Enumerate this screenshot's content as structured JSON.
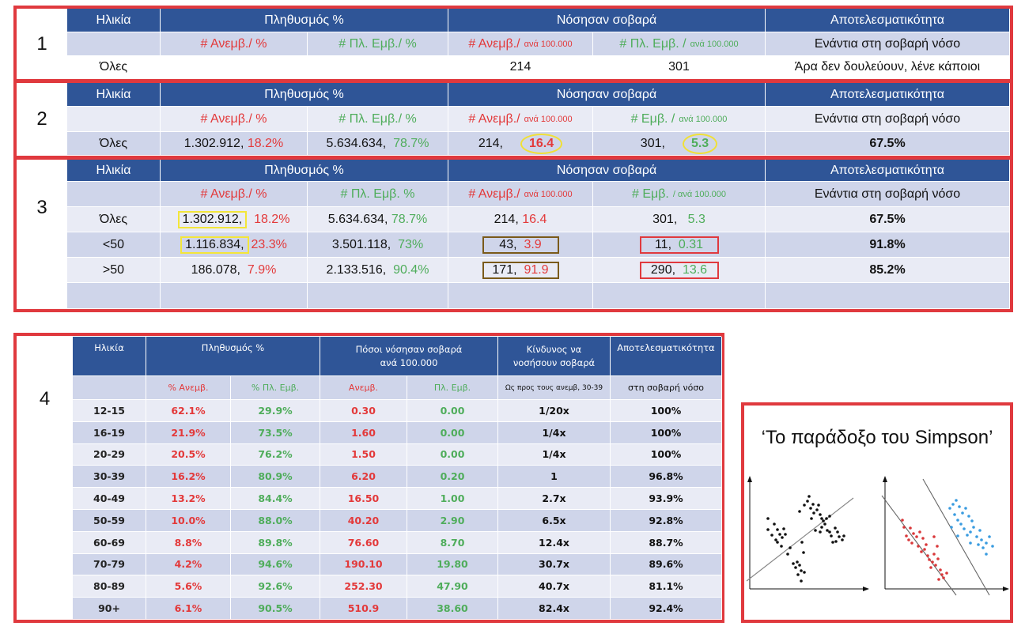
{
  "colors": {
    "panel_border": "#e0393e",
    "header_bg": "#2f5597",
    "subheader_bg": "#cfd5ea",
    "row_light": "#e9ebf5",
    "row_dark": "#cfd5ea",
    "unvaccinated": "#e3393a",
    "vaccinated": "#4fad5b",
    "highlight_yellow": "#f3e63a",
    "highlight_brown": "#7a5a1a"
  },
  "panel1": {
    "number": "1",
    "headers": [
      "Ηλικία",
      "Πληθυσμός %",
      "Νόσησαν σοβαρά",
      "Αποτελεσματικότητα"
    ],
    "sub": {
      "pop_unvax": "# Ανεμβ./ %",
      "pop_vax": "# Πλ. Εμβ./ %",
      "sick_unvax": "# Ανεμβ./",
      "sick_unvax_unit": "ανά 100.000",
      "sick_vax": "# Πλ. Εμβ. /",
      "sick_vax_unit": "ανά 100.000",
      "eff": "Ενάντια στη σοβαρή νόσο"
    },
    "row": {
      "age": "Όλες",
      "sick_unvax": "214",
      "sick_vax": "301",
      "eff": "Άρα δεν δουλεύουν, λένε κάποιοι"
    }
  },
  "panel2": {
    "number": "2",
    "headers": [
      "Ηλικία",
      "Πληθυσμός %",
      "Νόσησαν σοβαρά",
      "Αποτελεσματικότητα"
    ],
    "sub": {
      "pop_unvax": "# Ανεμβ./ %",
      "pop_vax": "# Πλ. Εμβ./ %",
      "sick_unvax": "# Ανεμβ./",
      "sick_unvax_unit": "ανά 100.000",
      "sick_vax": "# Εμβ. /",
      "sick_vax_unit": "ανά 100.000",
      "eff": "Ενάντια στη σοβαρή νόσο"
    },
    "row": {
      "age": "Όλες",
      "pop_unvax_n": "1.302.912,",
      "pop_unvax_pct": "18.2%",
      "pop_vax_n": "5.634.634,",
      "pop_vax_pct": "78.7%",
      "sick_unvax_n": "214,",
      "sick_unvax_rate": "16.4",
      "sick_vax_n": "301,",
      "sick_vax_rate": "5.3",
      "eff": "67.5%"
    }
  },
  "panel3": {
    "number": "3",
    "headers": [
      "Ηλικία",
      "Πληθυσμός %",
      "Νόσησαν σοβαρά",
      "Αποτελεσματικότητα"
    ],
    "sub": {
      "pop_unvax": "# Ανεμβ./ %",
      "pop_vax": "# Πλ. Εμβ. %",
      "sick_unvax": "# Ανεμβ./",
      "sick_unvax_unit": "ανά 100.000",
      "sick_vax": "# Εμβ.",
      "sick_vax_unit": "/ ανά 100.000",
      "eff": "Ενάντια στη σοβαρή νόσο"
    },
    "rows": [
      {
        "age": "Όλες",
        "pop_unvax_n": "1.302.912,",
        "pop_unvax_pct": "18.2%",
        "pop_vax_n": "5.634.634,",
        "pop_vax_pct": "78.7%",
        "sick_unvax_n": "214,",
        "sick_unvax_rate": "16.4",
        "sick_vax_n": "301,",
        "sick_vax_rate": "5.3",
        "eff": "67.5%"
      },
      {
        "age": "<50",
        "pop_unvax_n": "1.116.834,",
        "pop_unvax_pct": "23.3%",
        "pop_vax_n": "3.501.118,",
        "pop_vax_pct": "73%",
        "sick_unvax_n": "43,",
        "sick_unvax_rate": "3.9",
        "sick_vax_n": "11,",
        "sick_vax_rate": "0.31",
        "eff": "91.8%"
      },
      {
        "age": ">50",
        "pop_unvax_n": "186.078,",
        "pop_unvax_pct": "7.9%",
        "pop_vax_n": "2.133.516,",
        "pop_vax_pct": "90.4%",
        "sick_unvax_n": "171,",
        "sick_unvax_rate": "91.9",
        "sick_vax_n": "290,",
        "sick_vax_rate": "13.6",
        "eff": "85.2%"
      }
    ]
  },
  "panel4": {
    "number": "4",
    "headers": {
      "age": "Ηλικία",
      "pop": "Πληθυσμός %",
      "sick": "Πόσοι νόσησαν σοβαρά ανά 100.000",
      "risk": "Κίνδυνος να νοσήσουν σοβαρά",
      "eff": "Αποτελεσματικότητα"
    },
    "sub": {
      "pop_unvax": "% Ανεμβ.",
      "pop_vax": "% Πλ. Εμβ.",
      "sick_unvax": "Ανεμβ.",
      "sick_vax": "Πλ. Εμβ.",
      "risk": "Ως προς τους ανεμβ, 30-39",
      "eff": "στη σοβαρή νόσο"
    },
    "rows": [
      {
        "age": "12-15",
        "pop_unvax": "62.1%",
        "pop_vax": "29.9%",
        "sick_unvax": "0.30",
        "sick_vax": "0.00",
        "risk": "1/20x",
        "eff": "100%"
      },
      {
        "age": "16-19",
        "pop_unvax": "21.9%",
        "pop_vax": "73.5%",
        "sick_unvax": "1.60",
        "sick_vax": "0.00",
        "risk": "1/4x",
        "eff": "100%"
      },
      {
        "age": "20-29",
        "pop_unvax": "20.5%",
        "pop_vax": "76.2%",
        "sick_unvax": "1.50",
        "sick_vax": "0.00",
        "risk": "1/4x",
        "eff": "100%"
      },
      {
        "age": "30-39",
        "pop_unvax": "16.2%",
        "pop_vax": "80.9%",
        "sick_unvax": "6.20",
        "sick_vax": "0.20",
        "risk": "1",
        "eff": "96.8%"
      },
      {
        "age": "40-49",
        "pop_unvax": "13.2%",
        "pop_vax": "84.4%",
        "sick_unvax": "16.50",
        "sick_vax": "1.00",
        "risk": "2.7x",
        "eff": "93.9%"
      },
      {
        "age": "50-59",
        "pop_unvax": "10.0%",
        "pop_vax": "88.0%",
        "sick_unvax": "40.20",
        "sick_vax": "2.90",
        "risk": "6.5x",
        "eff": "92.8%"
      },
      {
        "age": "60-69",
        "pop_unvax": "8.8%",
        "pop_vax": "89.8%",
        "sick_unvax": "76.60",
        "sick_vax": "8.70",
        "risk": "12.4x",
        "eff": "88.7%"
      },
      {
        "age": "70-79",
        "pop_unvax": "4.2%",
        "pop_vax": "94.6%",
        "sick_unvax": "190.10",
        "sick_vax": "19.80",
        "risk": "30.7x",
        "eff": "89.6%"
      },
      {
        "age": "80-89",
        "pop_unvax": "5.6%",
        "pop_vax": "92.6%",
        "sick_unvax": "252.30",
        "sick_vax": "47.90",
        "risk": "40.7x",
        "eff": "81.1%"
      },
      {
        "age": "90+",
        "pop_unvax": "6.1%",
        "pop_vax": "90.5%",
        "sick_unvax": "510.9",
        "sick_vax": "38.60",
        "risk": "82.4x",
        "eff": "92.4%"
      }
    ]
  },
  "simpson": {
    "title": "‘Το παράδοξο του Simpson’",
    "left_points_color": "#111111",
    "group_a_color": "#d9383a",
    "group_b_color": "#3a9ce0"
  }
}
